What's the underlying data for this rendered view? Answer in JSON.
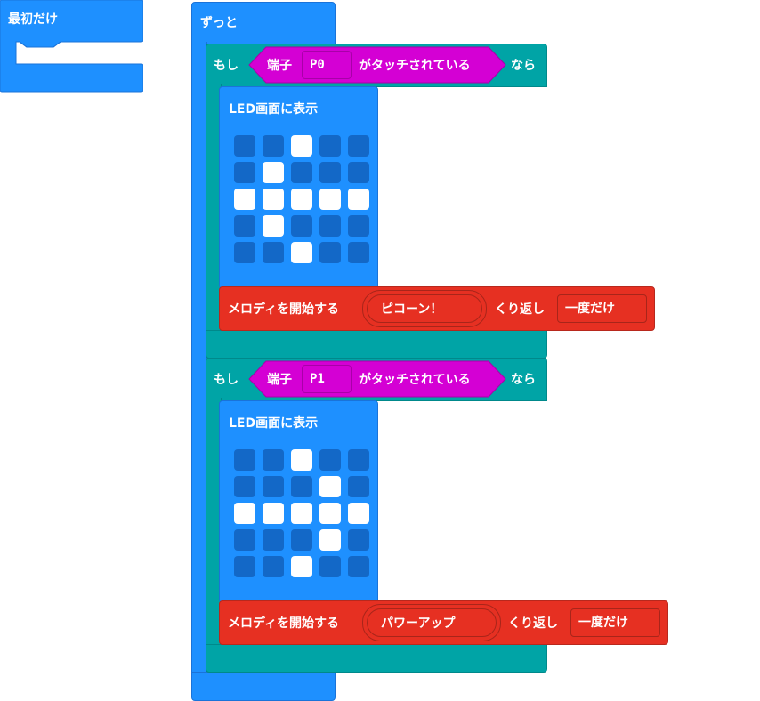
{
  "on_start": {
    "label": "最初だけ"
  },
  "forever": {
    "label": "ずっと"
  },
  "if_blocks": [
    {
      "if_label": "もし",
      "then_label": "なら",
      "pin_prefix": "端子",
      "pin_value": "P0",
      "touched_label": "がタッチされている",
      "show_leds_label": "LED画面に表示",
      "leds": [
        [
          0,
          0,
          1,
          0,
          0
        ],
        [
          0,
          1,
          0,
          0,
          0
        ],
        [
          1,
          1,
          1,
          1,
          1
        ],
        [
          0,
          1,
          0,
          0,
          0
        ],
        [
          0,
          0,
          1,
          0,
          0
        ]
      ],
      "melody_label": "メロディを開始する",
      "melody_value": "ピコーン！",
      "repeat_label": "くり返し",
      "repeat_value": "一度だけ"
    },
    {
      "if_label": "もし",
      "then_label": "なら",
      "pin_prefix": "端子",
      "pin_value": "P1",
      "touched_label": "がタッチされている",
      "show_leds_label": "LED画面に表示",
      "leds": [
        [
          0,
          0,
          1,
          0,
          0
        ],
        [
          0,
          0,
          0,
          1,
          0
        ],
        [
          1,
          1,
          1,
          1,
          1
        ],
        [
          0,
          0,
          0,
          1,
          0
        ],
        [
          0,
          0,
          1,
          0,
          0
        ]
      ],
      "melody_label": "メロディを開始する",
      "melody_value": "パワーアップ",
      "repeat_label": "くり返し",
      "repeat_value": "一度だけ"
    }
  ],
  "colors": {
    "basic_blue": "#1e90ff",
    "logic_teal": "#00a4a6",
    "input_magenta": "#d400d4",
    "music_red": "#e63022",
    "led_off": "#1368c7",
    "led_on": "#ffffff"
  }
}
